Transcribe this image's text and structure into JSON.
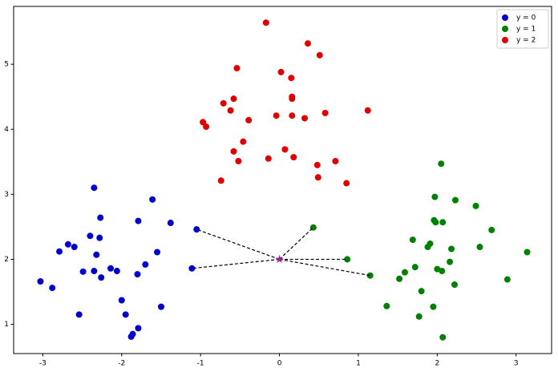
{
  "chart_data": {
    "type": "scatter",
    "xlim": [
      -3.37,
      3.45
    ],
    "ylim": [
      0.55,
      5.89
    ],
    "xticks": [
      -3,
      -2,
      -1,
      0,
      1,
      2,
      3
    ],
    "yticks": [
      1,
      2,
      3,
      4,
      5
    ],
    "legend": "upper right",
    "series": [
      {
        "name": "y = 0",
        "color": "#0000cd",
        "x": [
          -3.03,
          -2.88,
          -2.79,
          -2.68,
          -2.6,
          -2.54,
          -2.49,
          -2.4,
          -2.35,
          -2.35,
          -2.32,
          -2.28,
          -2.27,
          -2.26,
          -2.14,
          -2.06,
          -2.0,
          -1.95,
          -1.88,
          -1.86,
          -1.79,
          -1.8,
          -1.79,
          -1.7,
          -1.61,
          -1.55,
          -1.5,
          -1.38,
          -1.11,
          -1.05
        ],
        "values": [
          1.66,
          1.56,
          2.12,
          2.23,
          2.19,
          1.15,
          1.81,
          2.36,
          3.1,
          1.82,
          2.07,
          2.33,
          2.64,
          1.72,
          1.86,
          1.82,
          1.37,
          1.15,
          0.81,
          0.85,
          0.94,
          1.77,
          2.59,
          1.92,
          2.92,
          2.11,
          1.27,
          2.56,
          1.86,
          2.46
        ]
      },
      {
        "name": "y = 1",
        "color": "#008000",
        "x": [
          0.43,
          0.86,
          1.15,
          1.36,
          1.52,
          1.59,
          1.69,
          1.72,
          1.77,
          1.8,
          1.88,
          1.91,
          1.95,
          1.96,
          1.97,
          1.98,
          2.0,
          2.05,
          2.06,
          2.07,
          2.07,
          2.16,
          2.18,
          2.22,
          2.23,
          2.49,
          2.54,
          2.69,
          2.89,
          3.14
        ],
        "values": [
          2.49,
          2.0,
          1.75,
          1.28,
          1.7,
          1.8,
          2.3,
          1.88,
          1.12,
          1.51,
          2.19,
          2.24,
          1.27,
          2.6,
          2.96,
          2.57,
          1.85,
          3.47,
          1.82,
          0.8,
          2.57,
          1.96,
          2.16,
          1.61,
          2.91,
          2.82,
          2.19,
          2.45,
          1.69,
          2.11
        ]
      },
      {
        "name": "y = 2",
        "color": "#e00000",
        "x": [
          -0.97,
          -0.93,
          -0.74,
          -0.71,
          -0.62,
          -0.58,
          -0.58,
          -0.54,
          -0.52,
          -0.46,
          -0.39,
          -0.17,
          -0.14,
          -0.04,
          0.02,
          0.07,
          0.15,
          0.16,
          0.16,
          0.16,
          0.18,
          0.32,
          0.36,
          0.48,
          0.49,
          0.51,
          0.58,
          0.71,
          0.85,
          1.12
        ],
        "values": [
          4.11,
          4.04,
          3.21,
          4.4,
          4.29,
          4.47,
          3.66,
          4.94,
          3.51,
          3.81,
          4.14,
          5.64,
          3.55,
          4.21,
          4.88,
          3.69,
          4.79,
          4.47,
          4.5,
          4.21,
          3.57,
          4.17,
          5.32,
          3.45,
          3.26,
          5.14,
          4.25,
          3.51,
          3.17,
          4.29
        ]
      }
    ],
    "query": {
      "color": "#a0208c",
      "x": 0,
      "y": 2
    },
    "neighbor_lines": {
      "color": "#000000",
      "x": [
        -1.05,
        -1.11,
        0.43,
        0.86,
        1.15
      ],
      "y": [
        2.46,
        1.86,
        2.49,
        2.0,
        1.75
      ]
    }
  }
}
